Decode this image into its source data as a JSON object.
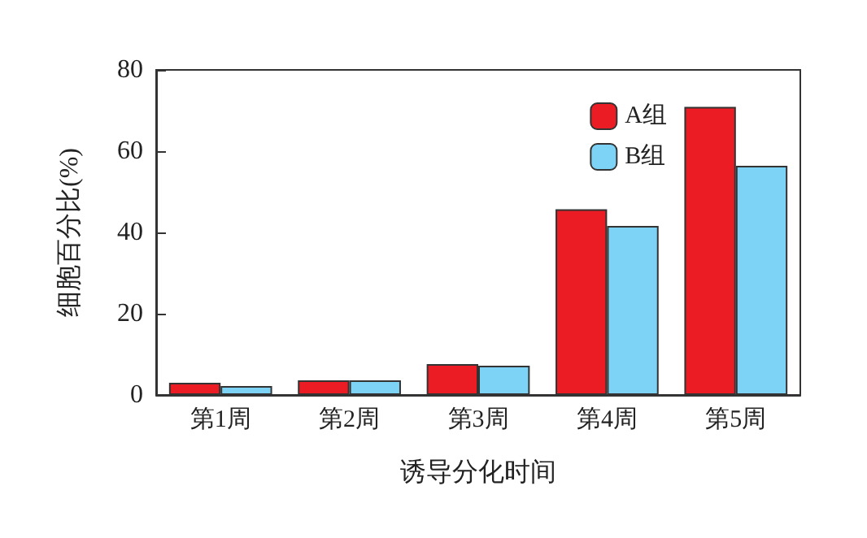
{
  "chart_data": {
    "type": "bar",
    "xlabel": "诱导分化时间",
    "ylabel": "细胞百分比(%)",
    "categories": [
      "第1周",
      "第2周",
      "第3周",
      "第4周",
      "第5周"
    ],
    "series": [
      {
        "name": "A组",
        "color": "#ec1c24",
        "values": [
          3.0,
          3.6,
          7.6,
          45.7,
          70.9
        ]
      },
      {
        "name": "B组",
        "color": "#7dd3f5",
        "values": [
          2.2,
          3.6,
          7.2,
          41.6,
          56.4
        ]
      }
    ],
    "ylim": [
      0,
      80
    ],
    "yticks": [
      0,
      20,
      40,
      60,
      80
    ],
    "grid": false,
    "legend": "top right"
  }
}
